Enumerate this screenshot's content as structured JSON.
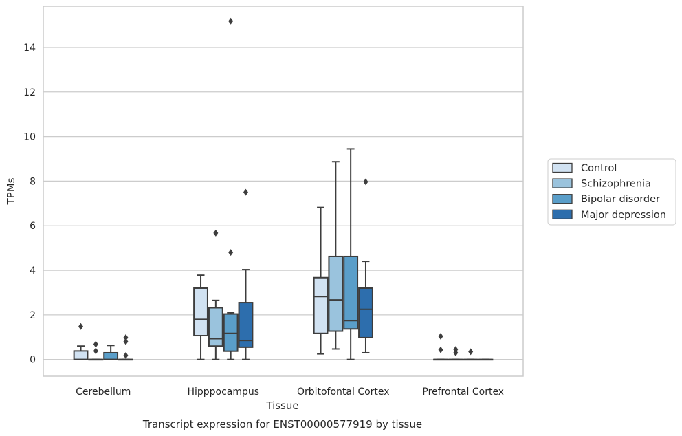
{
  "chart_data": {
    "type": "box",
    "caption": "Transcript expression for ENST00000577919 by tissue",
    "xlabel": "Tissue",
    "ylabel": "TPMs",
    "ylim": [
      -0.75,
      15.85
    ],
    "yticks": [
      0,
      2,
      4,
      6,
      8,
      10,
      12,
      14
    ],
    "grid": "horizontal",
    "legend_position": "right",
    "categories": [
      "Cerebellum",
      "Hipppocampus",
      "Orbitofontal Cortex",
      "Prefrontal Cortex"
    ],
    "series": [
      {
        "name": "Control",
        "color": "#d1e2f2",
        "boxes": [
          {
            "whislo": 0,
            "q1": 0,
            "med": 0,
            "q3": 0.38,
            "whishi": 0.6,
            "fliers": [
              1.48
            ]
          },
          {
            "whislo": 0,
            "q1": 1.07,
            "med": 1.8,
            "q3": 3.2,
            "whishi": 3.78,
            "fliers": []
          },
          {
            "whislo": 0.25,
            "q1": 1.17,
            "med": 2.82,
            "q3": 3.67,
            "whishi": 6.82,
            "fliers": []
          },
          {
            "whislo": 0,
            "q1": 0,
            "med": 0,
            "q3": 0,
            "whishi": 0,
            "fliers": [
              1.04,
              0.43
            ]
          }
        ]
      },
      {
        "name": "Schizophrenia",
        "color": "#9ac3dd",
        "boxes": [
          {
            "whislo": 0,
            "q1": 0,
            "med": 0,
            "q3": 0,
            "whishi": 0,
            "fliers": [
              0.68,
              0.38
            ]
          },
          {
            "whislo": 0,
            "q1": 0.6,
            "med": 0.93,
            "q3": 2.32,
            "whishi": 2.65,
            "fliers": [
              5.67
            ]
          },
          {
            "whislo": 0.47,
            "q1": 1.27,
            "med": 2.67,
            "q3": 4.62,
            "whishi": 8.87,
            "fliers": []
          },
          {
            "whislo": 0,
            "q1": 0,
            "med": 0,
            "q3": 0,
            "whishi": 0,
            "fliers": [
              0.45,
              0.3
            ]
          }
        ]
      },
      {
        "name": "Bipolar disorder",
        "color": "#5a9ec9",
        "boxes": [
          {
            "whislo": 0,
            "q1": 0,
            "med": 0,
            "q3": 0.3,
            "whishi": 0.63,
            "fliers": []
          },
          {
            "whislo": 0,
            "q1": 0.37,
            "med": 1.17,
            "q3": 2.04,
            "whishi": 2.1,
            "fliers": [
              15.18,
              4.8
            ]
          },
          {
            "whislo": 0,
            "q1": 1.37,
            "med": 1.74,
            "q3": 4.62,
            "whishi": 9.45,
            "fliers": []
          },
          {
            "whislo": 0,
            "q1": 0,
            "med": 0,
            "q3": 0,
            "whishi": 0,
            "fliers": [
              0.35
            ]
          }
        ]
      },
      {
        "name": "Major depression",
        "color": "#2d6ead",
        "boxes": [
          {
            "whislo": 0,
            "q1": 0,
            "med": 0,
            "q3": 0,
            "whishi": 0,
            "fliers": [
              0.98,
              0.8,
              0.18
            ]
          },
          {
            "whislo": 0,
            "q1": 0.55,
            "med": 0.85,
            "q3": 2.55,
            "whishi": 4.03,
            "fliers": [
              7.5
            ]
          },
          {
            "whislo": 0.3,
            "q1": 0.98,
            "med": 2.25,
            "q3": 3.2,
            "whishi": 4.4,
            "fliers": [
              7.97
            ]
          },
          {
            "whislo": 0,
            "q1": 0,
            "med": 0,
            "q3": 0,
            "whishi": 0,
            "fliers": []
          }
        ]
      }
    ]
  }
}
